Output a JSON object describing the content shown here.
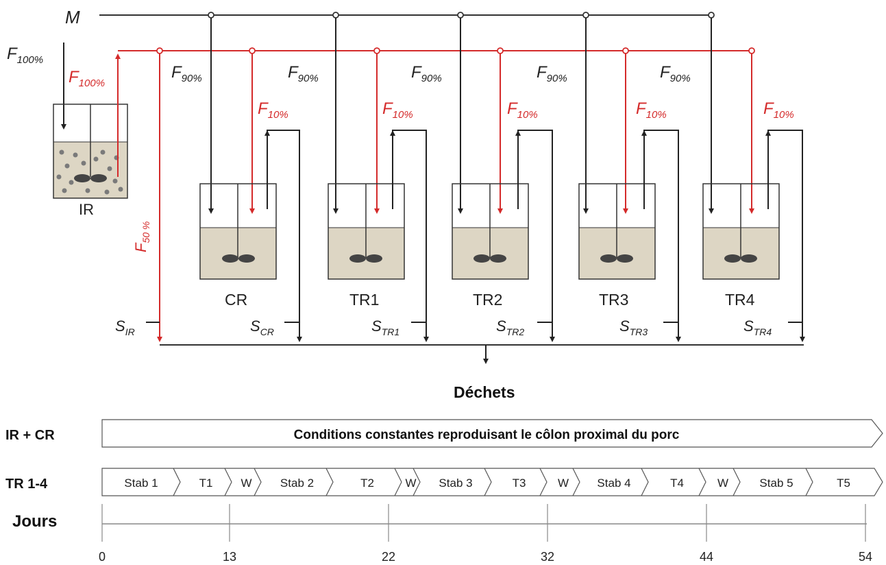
{
  "labels": {
    "medium": "M",
    "feed_ir": "F",
    "feed_ir_sub": "100%",
    "ir_out": "F",
    "ir_out_sub": "100%",
    "f50": "F",
    "f50_sub": "50 %",
    "ir_name": "IR",
    "sir": "S",
    "sir_sub": "IR",
    "waste": "Déchets",
    "days": "Jours"
  },
  "reactors": [
    {
      "name": "CR",
      "f90": "F",
      "f90_sub": "90%",
      "f10": "F",
      "f10_sub": "10%",
      "s": "S",
      "s_sub": "CR"
    },
    {
      "name": "TR1",
      "f90": "F",
      "f90_sub": "90%",
      "f10": "F",
      "f10_sub": "10%",
      "s": "S",
      "s_sub": "TR1"
    },
    {
      "name": "TR2",
      "f90": "F",
      "f90_sub": "90%",
      "f10": "F",
      "f10_sub": "10%",
      "s": "S",
      "s_sub": "TR2"
    },
    {
      "name": "TR3",
      "f90": "F",
      "f90_sub": "90%",
      "f10": "F",
      "f10_sub": "10%",
      "s": "S",
      "s_sub": "TR3"
    },
    {
      "name": "TR4",
      "f90": "F",
      "f90_sub": "90%",
      "f10": "F",
      "f10_sub": "10%",
      "s": "S",
      "s_sub": "TR4"
    }
  ],
  "timeline": {
    "row1_label": "IR + CR",
    "row1_text": "Conditions constantes reproduisant le côlon proximal du porc",
    "row2_label": "TR 1-4",
    "phases": [
      "Stab 1",
      "T1",
      "W",
      "Stab 2",
      "T2",
      "W",
      "Stab 3",
      "T3",
      "W",
      "Stab 4",
      "T4",
      "W",
      "Stab 5",
      "T5"
    ],
    "ticks": [
      "0",
      "13",
      "22",
      "32",
      "44",
      "54"
    ]
  },
  "colors": {
    "red": "#d42a2a",
    "dark": "#222222",
    "liquid": "#ddd6c4",
    "particle": "#7a7a7a"
  }
}
